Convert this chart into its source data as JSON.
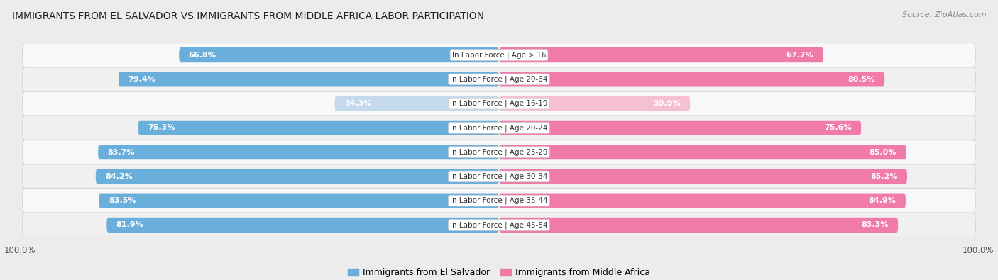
{
  "title": "IMMIGRANTS FROM EL SALVADOR VS IMMIGRANTS FROM MIDDLE AFRICA LABOR PARTICIPATION",
  "source": "Source: ZipAtlas.com",
  "categories": [
    "In Labor Force | Age > 16",
    "In Labor Force | Age 20-64",
    "In Labor Force | Age 16-19",
    "In Labor Force | Age 20-24",
    "In Labor Force | Age 25-29",
    "In Labor Force | Age 30-34",
    "In Labor Force | Age 35-44",
    "In Labor Force | Age 45-54"
  ],
  "el_salvador": [
    66.8,
    79.4,
    34.3,
    75.3,
    83.7,
    84.2,
    83.5,
    81.9
  ],
  "middle_africa": [
    67.7,
    80.5,
    39.9,
    75.6,
    85.0,
    85.2,
    84.9,
    83.3
  ],
  "color_el_salvador": "#6aaedb",
  "color_el_salvador_light": "#c5d9ec",
  "color_middle_africa": "#f07aa8",
  "color_middle_africa_light": "#f5c0d4",
  "background_color": "#ececec",
  "row_bg_color": "#f5f5f5",
  "row_border_color": "#dddddd",
  "max_value": 100.0,
  "legend_label_salvador": "Immigrants from El Salvador",
  "legend_label_africa": "Immigrants from Middle Africa"
}
